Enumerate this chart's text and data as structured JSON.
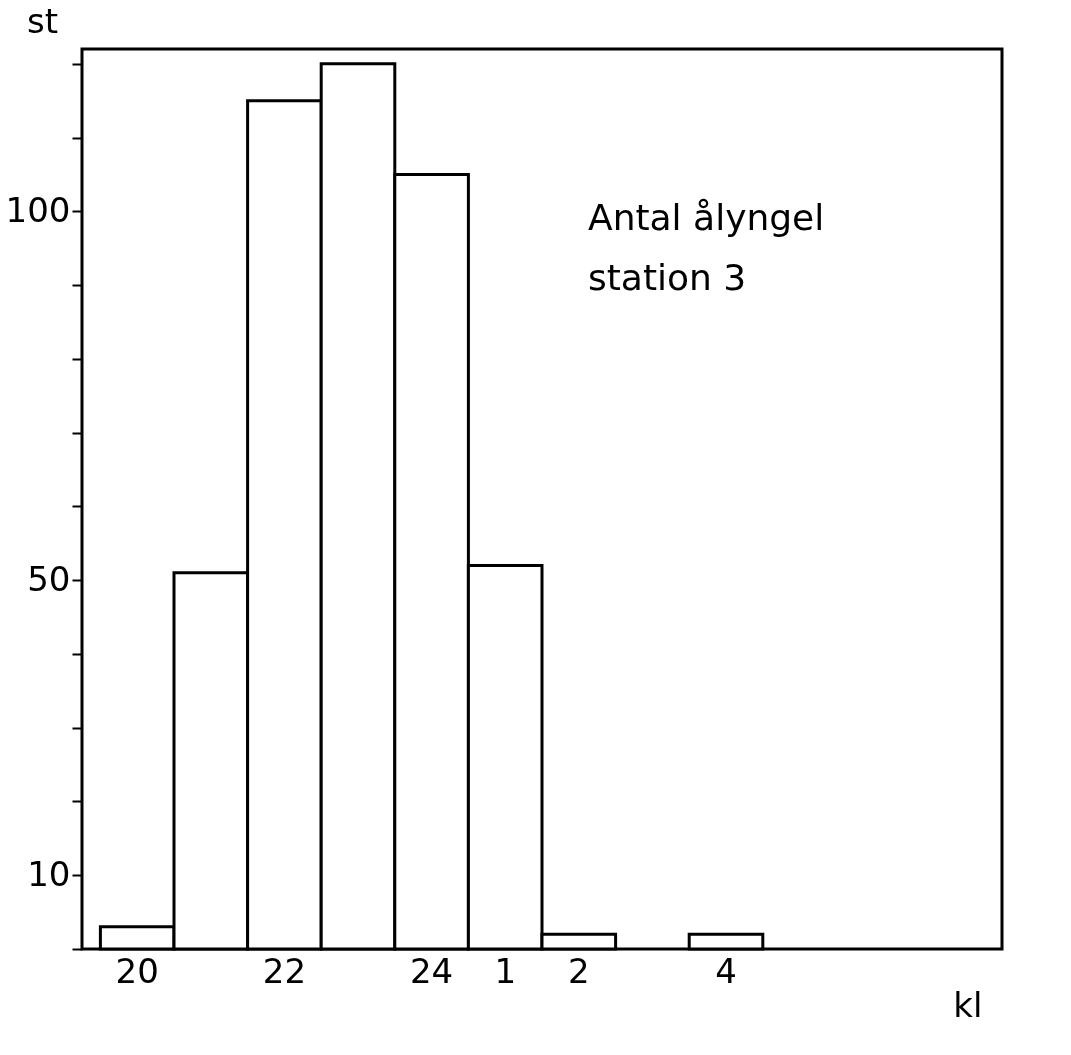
{
  "chart_data": {
    "type": "bar",
    "annotations": [
      "Antal ålyngel\nstation 3"
    ],
    "xlabel": "kl",
    "ylabel": "st",
    "categories": [
      "20",
      null,
      "22",
      null,
      "24",
      "1",
      "2",
      null,
      "4",
      null,
      null,
      null
    ],
    "values": [
      3,
      51,
      115,
      120,
      105,
      52,
      2,
      null,
      2,
      null,
      null,
      null
    ],
    "color": "#ffffff",
    "ylim": [
      0,
      122
    ],
    "yticks": [
      {
        "value": 0,
        "label": null
      },
      10,
      {
        "value": 20,
        "label": null
      },
      {
        "value": 30,
        "label": null
      },
      {
        "value": 40,
        "label": null
      },
      50,
      {
        "value": 60,
        "label": null
      },
      {
        "value": 70,
        "label": null
      },
      {
        "value": 80,
        "label": null
      },
      {
        "value": 90,
        "label": null
      },
      100,
      {
        "value": 110,
        "label": null
      },
      {
        "value": 120,
        "label": null
      }
    ],
    "grid": false
  }
}
